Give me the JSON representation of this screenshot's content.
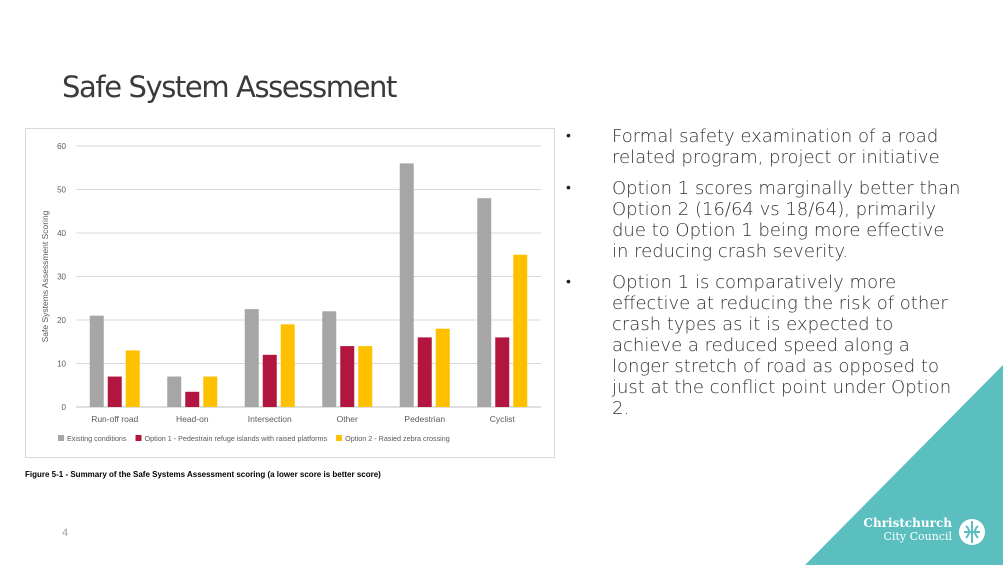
{
  "slide": {
    "title": "Safe System Assessment",
    "page_number": "4",
    "caption": "Figure 5-1 - Summary of the Safe Systems Assessment scoring (a lower score is better score)",
    "bullets": [
      "Formal safety examination of a road related program, project or initiative",
      "Option 1 scores marginally better than Option 2 (16/64 vs 18/64), primarily due to Option 1 being more effective in reducing crash severity.",
      "Option 1 is comparatively more effective at reducing the risk of other crash types as it is expected to achieve a reduced speed along a longer stretch of road as opposed to just at the conflict point under Option 2."
    ],
    "accent_color": "#5bbfbf"
  },
  "logo": {
    "line1": "Christchurch",
    "line2": "City Council",
    "icon": "christchurch-city-council-icon"
  },
  "chart_data": {
    "type": "bar",
    "categories": [
      "Run-off road",
      "Head-on",
      "Intersection",
      "Other",
      "Pedestrian",
      "Cyclist"
    ],
    "series": [
      {
        "name": "Existing conditions",
        "color": "#a6a6a6",
        "values": [
          21,
          7,
          22.5,
          22,
          56,
          48
        ]
      },
      {
        "name": "Option 1 - Pedestrain refuge islands with raised platforms",
        "color": "#b2163f",
        "values": [
          7,
          3.5,
          12,
          14,
          16,
          16
        ]
      },
      {
        "name": "Option 2 - Rasied zebra crossing",
        "color": "#ffc000",
        "values": [
          13,
          7,
          19,
          14,
          18,
          35
        ]
      }
    ],
    "ylabel": "Safe Systems Assessment Scoring",
    "xlabel": "",
    "ylim": [
      0,
      60
    ],
    "yticks": [
      "0",
      "10",
      "20",
      "30",
      "40",
      "50",
      "60"
    ],
    "grid": true,
    "legend_position": "bottom"
  }
}
